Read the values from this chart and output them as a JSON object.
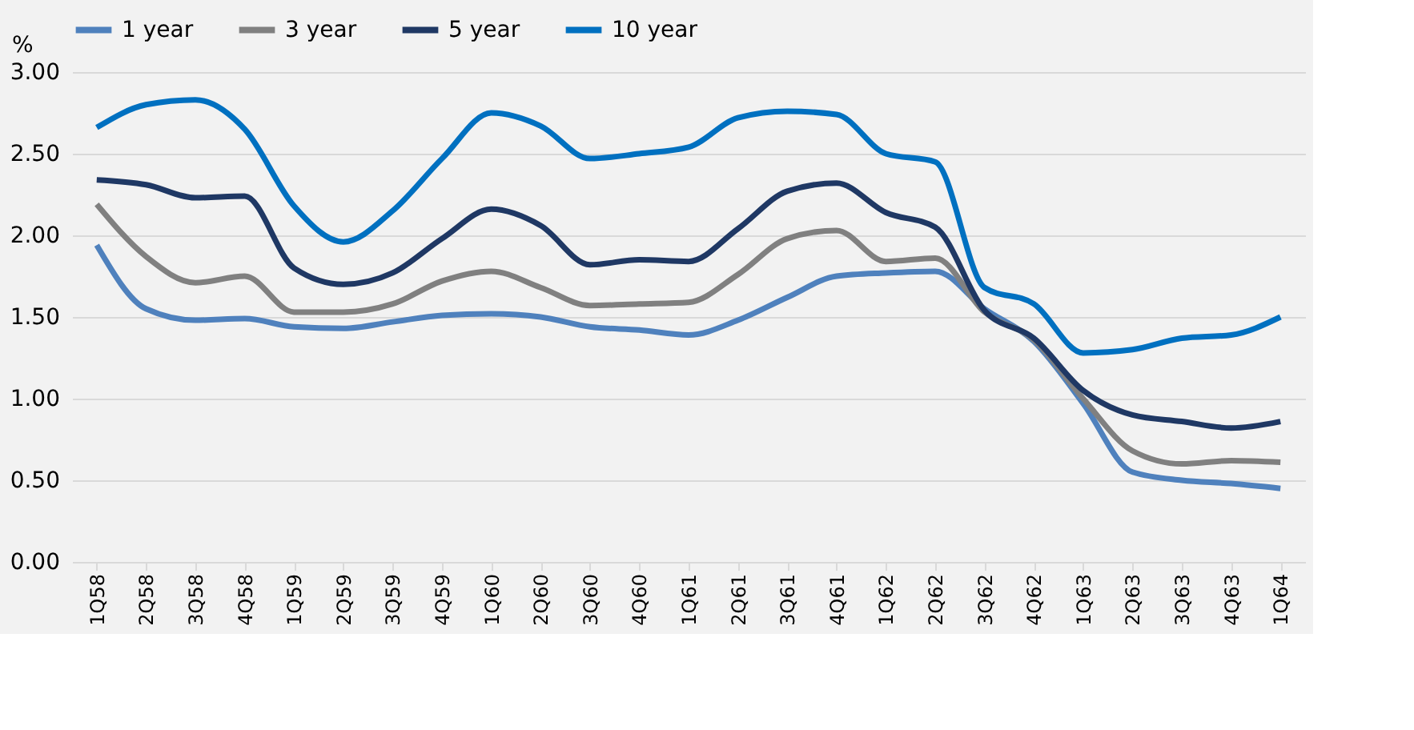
{
  "chart_data": {
    "type": "line",
    "ylabel": "%",
    "categories": [
      "1Q58",
      "2Q58",
      "3Q58",
      "4Q58",
      "1Q59",
      "2Q59",
      "3Q59",
      "4Q59",
      "1Q60",
      "2Q60",
      "3Q60",
      "4Q60",
      "1Q61",
      "2Q61",
      "3Q61",
      "4Q61",
      "1Q62",
      "2Q62",
      "3Q62",
      "4Q62",
      "1Q63",
      "2Q63",
      "3Q63",
      "4Q63",
      "1Q64"
    ],
    "series": [
      {
        "name": "1 year",
        "color": "#4f81bd",
        "values": [
          1.94,
          1.55,
          1.48,
          1.49,
          1.44,
          1.43,
          1.47,
          1.51,
          1.52,
          1.5,
          1.44,
          1.42,
          1.39,
          1.48,
          1.62,
          1.75,
          1.77,
          1.78,
          1.55,
          1.35,
          0.97,
          0.55,
          0.5,
          0.48,
          0.45
        ]
      },
      {
        "name": "3 year",
        "color": "#808080",
        "values": [
          2.19,
          1.87,
          1.71,
          1.75,
          1.53,
          1.53,
          1.58,
          1.72,
          1.78,
          1.68,
          1.57,
          1.58,
          1.59,
          1.76,
          1.98,
          2.03,
          1.84,
          1.86,
          1.53,
          1.36,
          1.0,
          0.68,
          0.6,
          0.62,
          0.61
        ]
      },
      {
        "name": "5 year",
        "color": "#1f3864",
        "values": [
          2.34,
          2.31,
          2.23,
          2.24,
          1.8,
          1.7,
          1.77,
          1.98,
          2.16,
          2.06,
          1.82,
          1.85,
          1.84,
          2.04,
          2.27,
          2.32,
          2.14,
          2.05,
          1.54,
          1.37,
          1.05,
          0.9,
          0.86,
          0.82,
          0.86
        ]
      },
      {
        "name": "10 year",
        "color": "#0070c0",
        "values": [
          2.66,
          2.8,
          2.83,
          2.65,
          2.18,
          1.96,
          2.15,
          2.47,
          2.75,
          2.67,
          2.47,
          2.5,
          2.54,
          2.72,
          2.76,
          2.74,
          2.5,
          2.45,
          1.68,
          1.58,
          1.28,
          1.3,
          1.37,
          1.39,
          1.5
        ]
      }
    ],
    "ylim": [
      0,
      3
    ],
    "yticks": [
      {
        "value": 0,
        "label": "0.00"
      },
      {
        "value": 0.5,
        "label": "0.50"
      },
      {
        "value": 1,
        "label": "1.00"
      },
      {
        "value": 1.5,
        "label": "1.50"
      },
      {
        "value": 2,
        "label": "2.00"
      },
      {
        "value": 2.5,
        "label": "2.50"
      },
      {
        "value": 3,
        "label": "3.00"
      }
    ],
    "grid": "y",
    "legend": "top",
    "marker": "none",
    "line_style": "solid"
  }
}
